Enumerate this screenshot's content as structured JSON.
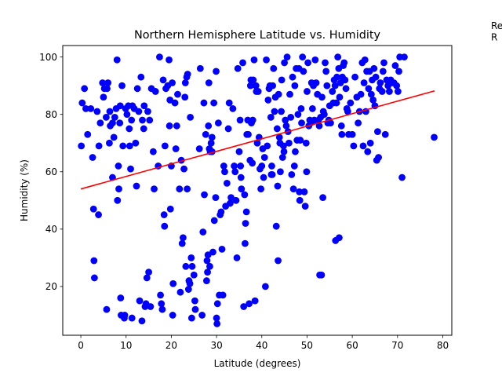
{
  "chart_data": {
    "type": "scatter",
    "title": "Northern Hemisphere Latitude vs. Humidity",
    "xlabel": "Latitude (degrees)",
    "ylabel": "Humidity (%)",
    "xlim": [
      -4,
      82
    ],
    "ylim": [
      3,
      104
    ],
    "xticks": [
      0,
      10,
      20,
      30,
      40,
      50,
      60,
      70,
      80
    ],
    "yticks": [
      20,
      40,
      60,
      80,
      100
    ],
    "grid": false,
    "legend": null,
    "annotation_text": "Re\nR",
    "point_color": "#0000ff",
    "regression_color": "#ff0000",
    "regression_line": {
      "x": [
        0.0,
        78.2
      ],
      "y": [
        54.0,
        88.2
      ]
    },
    "points": [
      [
        0.1,
        69
      ],
      [
        0.3,
        84
      ],
      [
        0.8,
        89
      ],
      [
        1.1,
        82
      ],
      [
        1.5,
        73
      ],
      [
        2.2,
        82
      ],
      [
        2.6,
        65
      ],
      [
        2.8,
        47
      ],
      [
        2.9,
        29
      ],
      [
        3.0,
        23
      ],
      [
        3.6,
        81
      ],
      [
        3.9,
        45
      ],
      [
        4.0,
        69
      ],
      [
        4.3,
        77
      ],
      [
        4.8,
        91
      ],
      [
        5.0,
        86
      ],
      [
        5.2,
        89
      ],
      [
        5.6,
        79
      ],
      [
        5.7,
        12
      ],
      [
        5.8,
        89
      ],
      [
        6.0,
        91
      ],
      [
        6.3,
        70
      ],
      [
        6.4,
        81
      ],
      [
        6.5,
        76
      ],
      [
        7.0,
        77
      ],
      [
        7.0,
        58
      ],
      [
        7.3,
        72
      ],
      [
        7.5,
        79
      ],
      [
        7.8,
        82
      ],
      [
        8.0,
        99
      ],
      [
        8.1,
        50
      ],
      [
        8.3,
        62
      ],
      [
        8.4,
        54
      ],
      [
        8.6,
        77
      ],
      [
        8.7,
        83
      ],
      [
        8.8,
        16
      ],
      [
        8.9,
        10
      ],
      [
        9.1,
        90
      ],
      [
        9.3,
        69
      ],
      [
        9.6,
        9
      ],
      [
        9.7,
        10
      ],
      [
        9.9,
        82
      ],
      [
        10.2,
        80
      ],
      [
        10.5,
        83
      ],
      [
        10.7,
        75
      ],
      [
        10.8,
        69
      ],
      [
        11.0,
        61
      ],
      [
        11.2,
        78
      ],
      [
        11.3,
        9
      ],
      [
        11.4,
        83
      ],
      [
        11.8,
        82
      ],
      [
        12.1,
        70
      ],
      [
        12.3,
        55
      ],
      [
        12.5,
        89
      ],
      [
        12.8,
        81
      ],
      [
        13.0,
        15
      ],
      [
        13.3,
        93
      ],
      [
        13.5,
        8
      ],
      [
        13.6,
        78
      ],
      [
        13.9,
        75
      ],
      [
        14.0,
        83
      ],
      [
        14.2,
        13
      ],
      [
        14.4,
        14
      ],
      [
        14.6,
        23
      ],
      [
        14.8,
        81
      ],
      [
        15.0,
        25
      ],
      [
        15.2,
        78
      ],
      [
        15.4,
        13
      ],
      [
        15.6,
        89
      ],
      [
        16.0,
        67
      ],
      [
        16.2,
        54
      ],
      [
        16.5,
        88
      ],
      [
        17.1,
        62
      ],
      [
        17.4,
        100
      ],
      [
        17.6,
        17
      ],
      [
        17.8,
        14
      ],
      [
        18.0,
        12
      ],
      [
        18.2,
        92
      ],
      [
        18.4,
        45
      ],
      [
        18.5,
        41
      ],
      [
        18.6,
        69
      ],
      [
        18.8,
        89
      ],
      [
        19.2,
        90
      ],
      [
        19.5,
        99
      ],
      [
        19.6,
        76
      ],
      [
        19.7,
        85
      ],
      [
        19.8,
        47
      ],
      [
        20.0,
        62
      ],
      [
        20.2,
        91
      ],
      [
        20.3,
        10
      ],
      [
        20.4,
        21
      ],
      [
        20.8,
        84
      ],
      [
        21.0,
        68
      ],
      [
        21.2,
        76
      ],
      [
        21.4,
        87
      ],
      [
        21.8,
        54
      ],
      [
        22.0,
        18
      ],
      [
        22.2,
        64
      ],
      [
        22.4,
        35
      ],
      [
        22.6,
        37
      ],
      [
        22.8,
        61
      ],
      [
        23.0,
        86
      ],
      [
        23.1,
        91
      ],
      [
        23.2,
        27
      ],
      [
        23.4,
        93
      ],
      [
        23.5,
        54
      ],
      [
        23.6,
        94
      ],
      [
        23.8,
        19
      ],
      [
        23.9,
        22
      ],
      [
        24.1,
        21
      ],
      [
        24.2,
        79
      ],
      [
        24.4,
        30
      ],
      [
        24.5,
        9
      ],
      [
        24.6,
        27
      ],
      [
        25.0,
        24
      ],
      [
        25.2,
        15
      ],
      [
        25.3,
        12
      ],
      [
        26.2,
        68
      ],
      [
        26.4,
        96
      ],
      [
        26.8,
        10
      ],
      [
        27.0,
        39
      ],
      [
        27.2,
        84
      ],
      [
        27.3,
        52
      ],
      [
        27.6,
        73
      ],
      [
        27.8,
        22
      ],
      [
        27.9,
        29
      ],
      [
        28.0,
        25
      ],
      [
        28.1,
        31
      ],
      [
        28.2,
        76
      ],
      [
        28.3,
        91
      ],
      [
        28.4,
        68
      ],
      [
        28.5,
        27
      ],
      [
        28.6,
        67
      ],
      [
        28.8,
        70
      ],
      [
        29.0,
        72
      ],
      [
        29.0,
        67
      ],
      [
        29.2,
        32
      ],
      [
        29.4,
        84
      ],
      [
        29.5,
        43
      ],
      [
        29.8,
        51
      ],
      [
        29.9,
        95
      ],
      [
        30.0,
        9
      ],
      [
        30.1,
        7
      ],
      [
        30.2,
        14
      ],
      [
        30.4,
        77
      ],
      [
        30.6,
        17
      ],
      [
        30.8,
        45
      ],
      [
        31.0,
        46
      ],
      [
        31.2,
        33
      ],
      [
        31.4,
        17
      ],
      [
        31.6,
        62
      ],
      [
        31.8,
        60
      ],
      [
        32.0,
        48
      ],
      [
        32.3,
        56
      ],
      [
        32.6,
        75
      ],
      [
        32.8,
        84
      ],
      [
        33.0,
        49
      ],
      [
        33.2,
        51
      ],
      [
        33.6,
        82
      ],
      [
        33.9,
        62
      ],
      [
        34.1,
        60
      ],
      [
        34.3,
        50
      ],
      [
        34.5,
        30
      ],
      [
        34.7,
        96
      ],
      [
        35.0,
        67
      ],
      [
        35.2,
        78
      ],
      [
        35.3,
        62
      ],
      [
        35.4,
        58
      ],
      [
        35.5,
        54
      ],
      [
        35.8,
        98
      ],
      [
        36.0,
        13
      ],
      [
        36.2,
        52
      ],
      [
        36.3,
        35
      ],
      [
        36.4,
        42
      ],
      [
        36.6,
        46
      ],
      [
        36.7,
        73
      ],
      [
        36.9,
        78
      ],
      [
        37.0,
        73
      ],
      [
        37.2,
        14
      ],
      [
        37.4,
        64
      ],
      [
        37.5,
        90
      ],
      [
        37.6,
        92
      ],
      [
        37.7,
        77
      ],
      [
        37.9,
        63
      ],
      [
        38.0,
        78
      ],
      [
        38.1,
        92
      ],
      [
        38.3,
        99
      ],
      [
        38.5,
        15
      ],
      [
        38.7,
        90
      ],
      [
        38.8,
        88
      ],
      [
        39.0,
        70
      ],
      [
        39.2,
        88
      ],
      [
        39.4,
        72
      ],
      [
        39.6,
        61
      ],
      [
        39.8,
        54
      ],
      [
        40.0,
        62
      ],
      [
        40.2,
        68
      ],
      [
        40.4,
        58
      ],
      [
        40.6,
        65
      ],
      [
        40.8,
        20
      ],
      [
        41.0,
        99
      ],
      [
        41.2,
        69
      ],
      [
        41.4,
        85
      ],
      [
        41.6,
        89
      ],
      [
        41.8,
        90
      ],
      [
        42.0,
        79
      ],
      [
        42.1,
        59
      ],
      [
        42.2,
        62
      ],
      [
        42.3,
        59
      ],
      [
        42.4,
        90
      ],
      [
        42.6,
        96
      ],
      [
        42.8,
        81
      ],
      [
        43.0,
        86
      ],
      [
        43.2,
        41
      ],
      [
        43.4,
        75
      ],
      [
        43.5,
        55
      ],
      [
        43.6,
        29
      ],
      [
        43.7,
        87
      ],
      [
        43.9,
        72
      ],
      [
        44.0,
        70
      ],
      [
        44.1,
        60
      ],
      [
        44.3,
        81
      ],
      [
        44.4,
        92
      ],
      [
        44.6,
        65
      ],
      [
        44.8,
        69
      ],
      [
        44.9,
        67
      ],
      [
        45.0,
        98
      ],
      [
        45.2,
        78
      ],
      [
        45.4,
        76
      ],
      [
        45.6,
        100
      ],
      [
        45.8,
        74
      ],
      [
        46.0,
        70
      ],
      [
        46.2,
        87
      ],
      [
        46.4,
        79
      ],
      [
        46.6,
        59
      ],
      [
        46.8,
        93
      ],
      [
        47.0,
        54
      ],
      [
        47.2,
        62
      ],
      [
        47.3,
        90
      ],
      [
        47.4,
        67
      ],
      [
        47.6,
        96
      ],
      [
        47.8,
        71
      ],
      [
        48.0,
        80
      ],
      [
        48.2,
        96
      ],
      [
        48.3,
        53
      ],
      [
        48.4,
        50
      ],
      [
        48.5,
        71
      ],
      [
        48.7,
        82
      ],
      [
        48.8,
        77
      ],
      [
        49.0,
        100
      ],
      [
        49.2,
        95
      ],
      [
        49.4,
        53
      ],
      [
        49.6,
        48
      ],
      [
        49.8,
        70
      ],
      [
        49.9,
        60
      ],
      [
        50.0,
        88
      ],
      [
        50.2,
        98
      ],
      [
        50.4,
        76
      ],
      [
        50.6,
        78
      ],
      [
        50.8,
        77
      ],
      [
        51.0,
        91
      ],
      [
        51.2,
        82
      ],
      [
        51.4,
        90
      ],
      [
        51.6,
        78
      ],
      [
        51.8,
        99
      ],
      [
        52.0,
        91
      ],
      [
        52.3,
        87
      ],
      [
        52.5,
        78
      ],
      [
        52.7,
        76
      ],
      [
        52.8,
        24
      ],
      [
        53.0,
        79
      ],
      [
        53.2,
        24
      ],
      [
        53.3,
        86
      ],
      [
        53.5,
        51
      ],
      [
        53.6,
        81
      ],
      [
        53.8,
        80
      ],
      [
        54.0,
        98
      ],
      [
        54.2,
        95
      ],
      [
        54.4,
        90
      ],
      [
        54.6,
        77
      ],
      [
        54.8,
        78
      ],
      [
        55.0,
        83
      ],
      [
        55.2,
        77
      ],
      [
        55.6,
        88
      ],
      [
        55.8,
        84
      ],
      [
        56.0,
        92
      ],
      [
        56.2,
        90
      ],
      [
        56.3,
        36
      ],
      [
        56.5,
        84
      ],
      [
        56.6,
        93
      ],
      [
        56.8,
        100
      ],
      [
        57.0,
        96
      ],
      [
        57.1,
        37
      ],
      [
        57.2,
        86
      ],
      [
        57.4,
        91
      ],
      [
        57.6,
        76
      ],
      [
        57.7,
        73
      ],
      [
        57.8,
        93
      ],
      [
        58.0,
        97
      ],
      [
        58.2,
        98
      ],
      [
        58.4,
        92
      ],
      [
        58.6,
        89
      ],
      [
        58.8,
        82
      ],
      [
        59.0,
        81
      ],
      [
        59.2,
        73
      ],
      [
        59.6,
        84
      ],
      [
        60.0,
        73
      ],
      [
        60.3,
        69
      ],
      [
        60.6,
        93
      ],
      [
        61.0,
        86
      ],
      [
        61.3,
        77
      ],
      [
        61.6,
        81
      ],
      [
        61.9,
        87
      ],
      [
        62.2,
        98
      ],
      [
        62.4,
        69
      ],
      [
        62.6,
        91
      ],
      [
        62.8,
        99
      ],
      [
        63.0,
        81
      ],
      [
        63.2,
        95
      ],
      [
        63.4,
        67
      ],
      [
        63.6,
        89
      ],
      [
        63.8,
        95
      ],
      [
        64.0,
        70
      ],
      [
        64.2,
        87
      ],
      [
        64.4,
        92
      ],
      [
        64.6,
        85
      ],
      [
        64.8,
        96
      ],
      [
        65.0,
        83
      ],
      [
        65.2,
        93
      ],
      [
        65.4,
        64
      ],
      [
        65.6,
        74
      ],
      [
        65.8,
        65
      ],
      [
        66.0,
        89
      ],
      [
        66.2,
        91
      ],
      [
        66.6,
        88
      ],
      [
        66.8,
        95
      ],
      [
        67.0,
        98
      ],
      [
        67.3,
        73
      ],
      [
        67.6,
        92
      ],
      [
        67.9,
        90
      ],
      [
        68.2,
        88
      ],
      [
        68.5,
        92
      ],
      [
        68.8,
        91
      ],
      [
        69.2,
        91
      ],
      [
        69.5,
        97
      ],
      [
        69.8,
        90
      ],
      [
        70.1,
        88
      ],
      [
        70.3,
        95
      ],
      [
        70.5,
        100
      ],
      [
        71.0,
        58
      ],
      [
        71.5,
        100
      ],
      [
        78.1,
        72
      ]
    ]
  }
}
